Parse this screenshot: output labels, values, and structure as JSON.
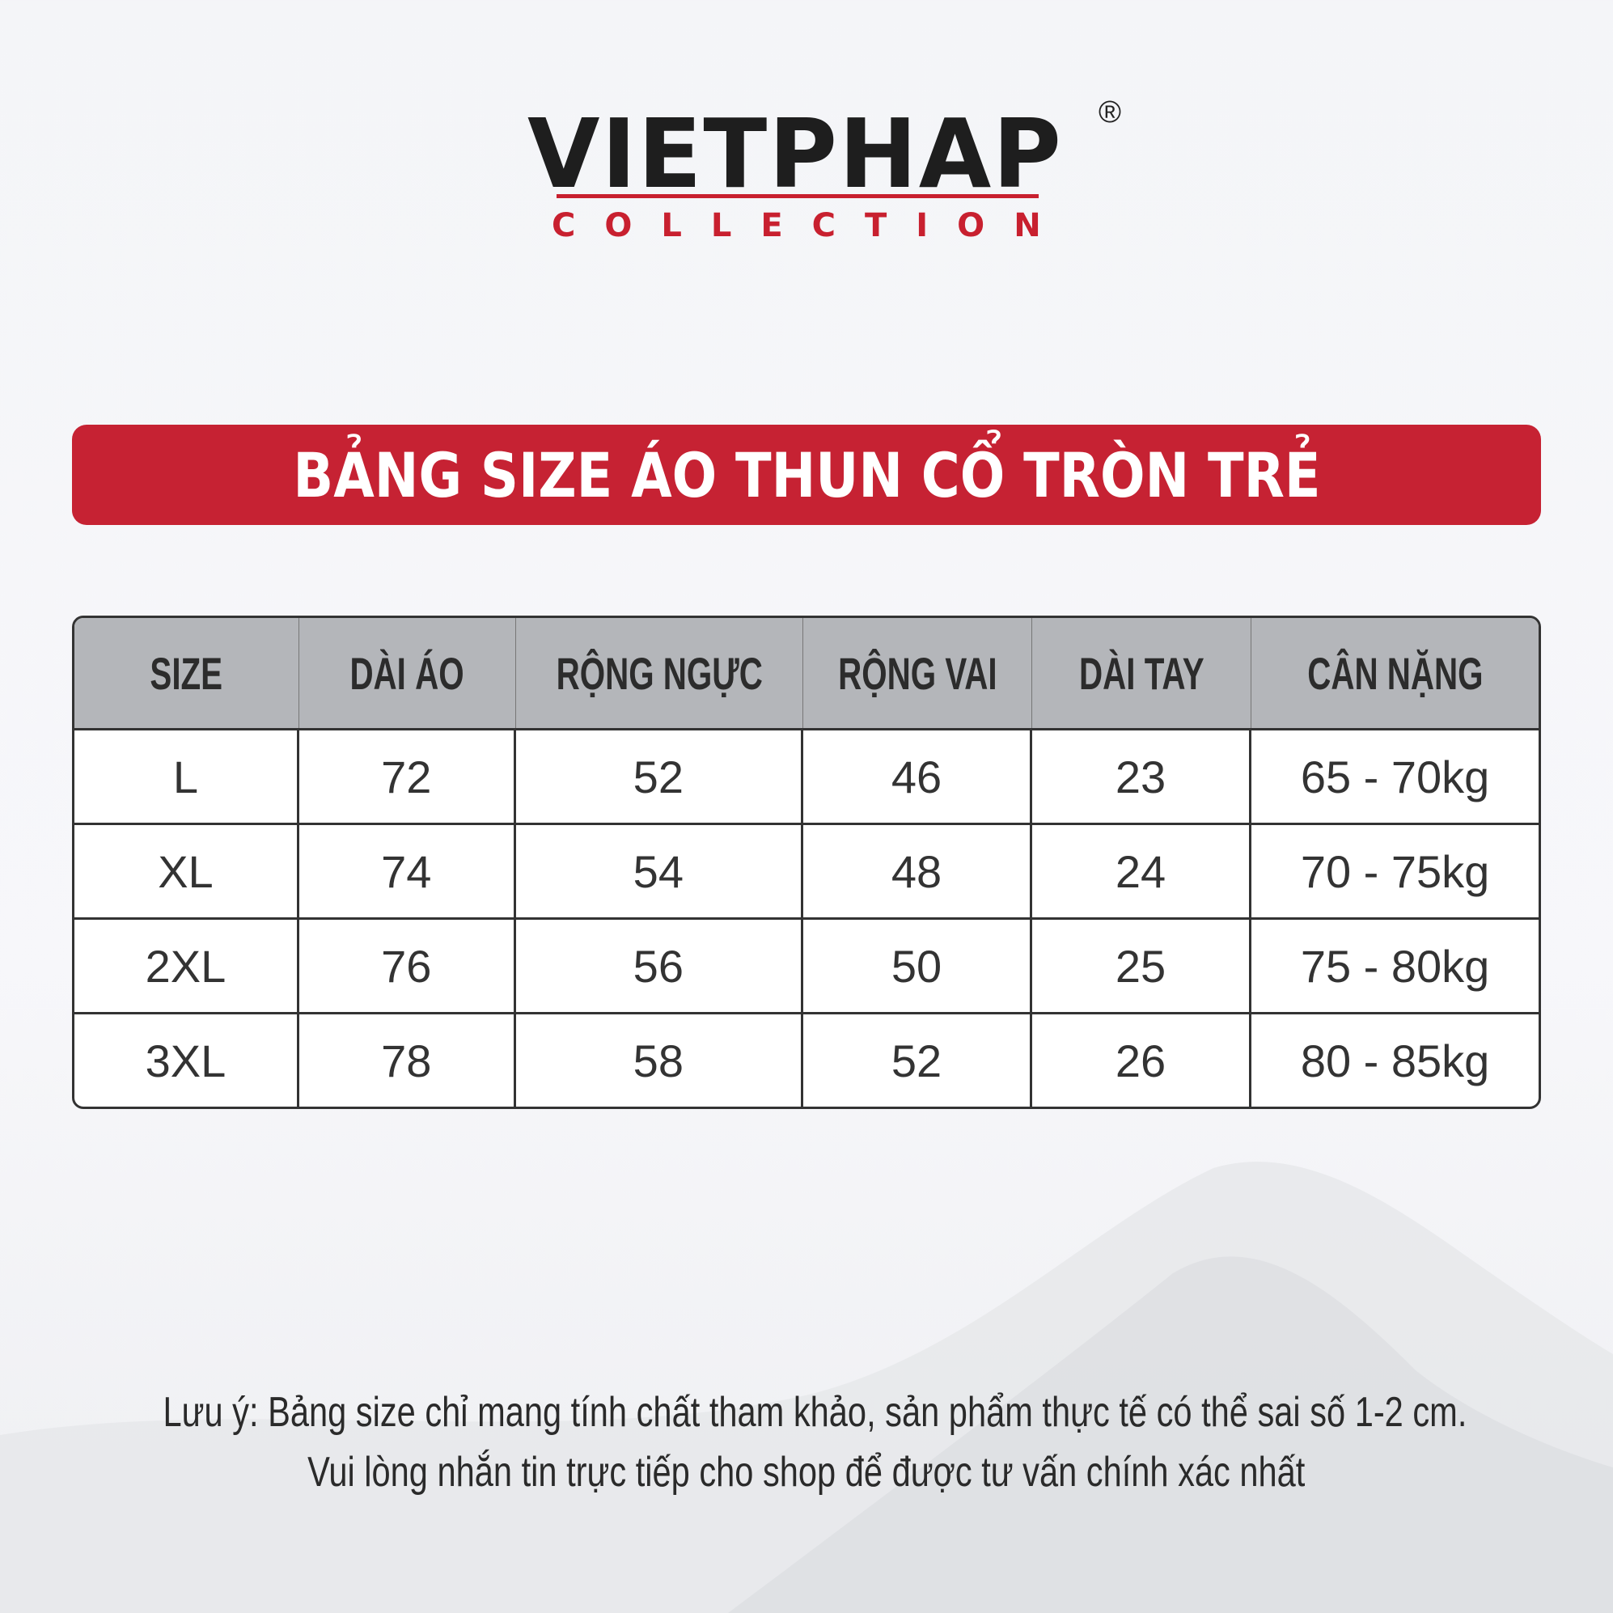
{
  "brand": {
    "name": "VIETPHAP",
    "registered": "®",
    "sub": "COLLECTION",
    "accent_color": "#c62233"
  },
  "title": "BẢNG SIZE ÁO THUN CỔ TRÒN TRẺ",
  "table": {
    "headers": [
      "SIZE",
      "DÀI ÁO",
      "RỘNG NGỰC",
      "RỘNG VAI",
      "DÀI TAY",
      "CÂN NẶNG"
    ],
    "rows": [
      [
        "L",
        "72",
        "52",
        "46",
        "23",
        "65 - 70kg"
      ],
      [
        "XL",
        "74",
        "54",
        "48",
        "24",
        "70 - 75kg"
      ],
      [
        "2XL",
        "76",
        "56",
        "50",
        "25",
        "75 - 80kg"
      ],
      [
        "3XL",
        "78",
        "58",
        "52",
        "26",
        "80 - 85kg"
      ]
    ]
  },
  "note": {
    "line1": "Lưu ý: Bảng size chỉ mang tính chất tham khảo, sản phẩm thực tế có thể sai số 1-2 cm.",
    "line2": "Vui lòng nhắn tin trực tiếp cho shop để được tư vấn chính xác nhất"
  }
}
